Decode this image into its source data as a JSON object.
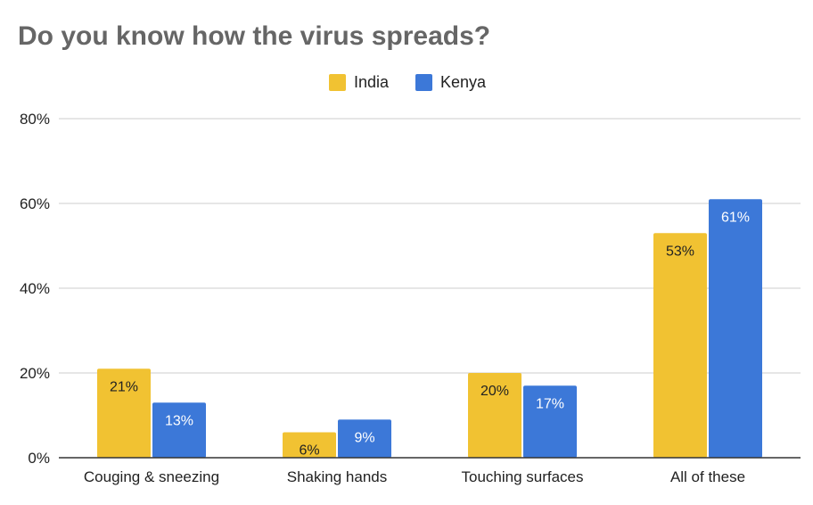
{
  "chart_data": {
    "type": "bar",
    "title": "Do you know how the virus spreads?",
    "categories": [
      "Couging & sneezing",
      "Shaking hands",
      "Touching surfaces",
      "All of these"
    ],
    "series": [
      {
        "name": "India",
        "color": "#f1c232",
        "values": [
          21,
          6,
          20,
          53
        ],
        "labels": [
          "21%",
          "6%",
          "20%",
          "53%"
        ],
        "label_color": "#222222"
      },
      {
        "name": "Kenya",
        "color": "#3c78d8",
        "values": [
          13,
          9,
          17,
          61
        ],
        "labels": [
          "13%",
          "9%",
          "17%",
          "61%"
        ],
        "label_color": "#ffffff"
      }
    ],
    "ylim": [
      0,
      80
    ],
    "yticks": [
      0,
      20,
      40,
      60,
      80
    ],
    "ytick_labels": [
      "0%",
      "20%",
      "40%",
      "60%",
      "80%"
    ],
    "grid": true,
    "legend_position": "top-center"
  }
}
